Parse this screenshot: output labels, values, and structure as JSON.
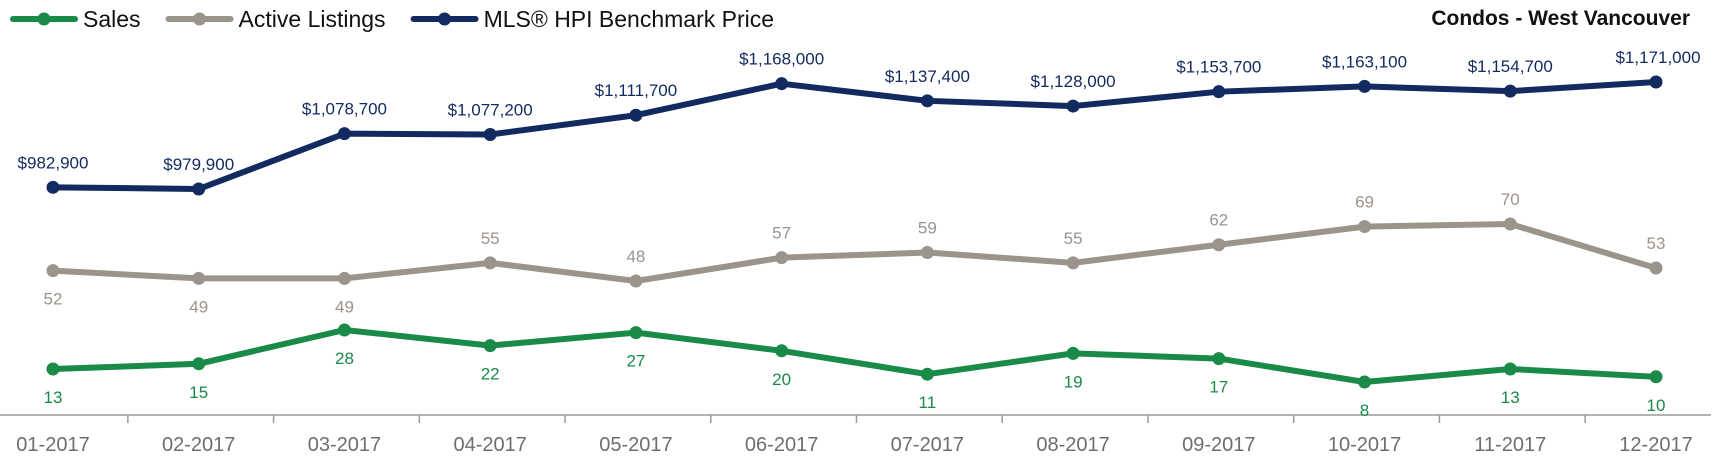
{
  "chart_data": {
    "type": "line",
    "title": "Condos - West Vancouver",
    "categories": [
      "01-2017",
      "02-2017",
      "03-2017",
      "04-2017",
      "05-2017",
      "06-2017",
      "07-2017",
      "08-2017",
      "09-2017",
      "10-2017",
      "11-2017",
      "12-2017"
    ],
    "series": [
      {
        "name": "Sales",
        "color": "#1a8a48",
        "values": [
          13,
          15,
          28,
          22,
          27,
          20,
          11,
          19,
          17,
          8,
          13,
          10
        ],
        "labels": [
          "13",
          "15",
          "28",
          "22",
          "27",
          "20",
          "11",
          "19",
          "17",
          "8",
          "13",
          "10"
        ],
        "label_position": [
          "below",
          "below",
          "below",
          "below",
          "below",
          "below",
          "below",
          "below",
          "below",
          "below",
          "below",
          "below"
        ]
      },
      {
        "name": "Active Listings",
        "color": "#9b948a",
        "values": [
          52,
          49,
          49,
          55,
          48,
          57,
          59,
          55,
          62,
          69,
          70,
          53
        ],
        "labels": [
          "52",
          "49",
          "49",
          "55",
          "48",
          "57",
          "59",
          "55",
          "62",
          "69",
          "70",
          "53"
        ],
        "label_position": [
          "below",
          "below",
          "below",
          "above",
          "above",
          "above",
          "above",
          "above",
          "above",
          "above",
          "above",
          "above"
        ]
      },
      {
        "name": "MLS® HPI Benchmark Price",
        "color": "#122a5f",
        "values": [
          982900,
          979900,
          1078700,
          1077200,
          1111700,
          1168000,
          1137400,
          1128000,
          1153700,
          1163100,
          1154700,
          1171000
        ],
        "labels": [
          "$982,900",
          "$979,900",
          "$1,078,700",
          "$1,077,200",
          "$1,111,700",
          "$1,168,000",
          "$1,137,400",
          "$1,128,000",
          "$1,153,700",
          "$1,163,100",
          "$1,154,700",
          "$1,171,000"
        ],
        "label_position": [
          "above",
          "above",
          "above",
          "above",
          "above",
          "above",
          "above",
          "above",
          "above",
          "above",
          "above",
          "above"
        ]
      }
    ],
    "legend_placement": "top-left",
    "title_placement": "top-right",
    "grid": false
  }
}
